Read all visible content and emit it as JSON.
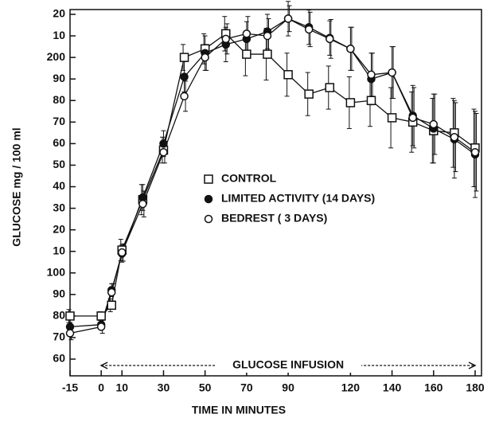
{
  "chart_data": {
    "type": "line",
    "y_label": "GLUCOSE mg / 100 ml",
    "x_label": "TIME IN MINUTES",
    "x": [
      -15,
      0,
      5,
      10,
      20,
      30,
      40,
      50,
      60,
      70,
      80,
      90,
      100,
      110,
      120,
      130,
      140,
      150,
      160,
      170,
      180
    ],
    "series": [
      {
        "name": "CONTROL",
        "color": "#111111",
        "marker": "square",
        "values": [
          80,
          80,
          85,
          110.6,
          134,
          157,
          200,
          204,
          211,
          201.5,
          201.5,
          192,
          183,
          186,
          179,
          180,
          172,
          170,
          166,
          165,
          158
        ],
        "errors": [
          3,
          2,
          3,
          5,
          7,
          6,
          6,
          7,
          8,
          10,
          12,
          10,
          10,
          10,
          12,
          12,
          14,
          14,
          15,
          16,
          18
        ]
      },
      {
        "name": "LIMITED ACTIVITY (14 DAYS)",
        "color": "#111111",
        "marker": "filled-circle",
        "values": [
          75,
          76,
          92,
          109,
          135,
          160,
          191,
          202,
          206,
          208.6,
          212,
          218,
          214,
          209,
          204,
          190,
          193,
          173,
          167,
          162,
          155
        ],
        "errors": [
          2,
          2,
          3,
          4,
          6,
          6,
          7,
          8,
          8,
          8,
          8,
          8,
          8,
          8,
          10,
          12,
          12,
          14,
          16,
          18,
          20
        ]
      },
      {
        "name": "BEDREST ( 3 DAYS)",
        "color": "#111111",
        "marker": "open-circle",
        "values": [
          72,
          75,
          91,
          109.5,
          132,
          156,
          182,
          200,
          208.6,
          211,
          210,
          218,
          213,
          208.6,
          204,
          192,
          193,
          172,
          169,
          163,
          156
        ],
        "errors": [
          3,
          3,
          4,
          4,
          6,
          5,
          7,
          6,
          7,
          8,
          8,
          6,
          8,
          9,
          10,
          10,
          12,
          14,
          14,
          16,
          18
        ]
      }
    ],
    "xlim": [
      -15,
      180
    ],
    "xticks": [
      -15,
      0,
      10,
      30,
      50,
      70,
      90,
      120,
      140,
      160,
      180
    ],
    "ylim": [
      60,
      220
    ],
    "yticks": [
      60,
      70,
      80,
      90,
      100,
      {
        "value": 110,
        "label": "10"
      },
      {
        "value": 120,
        "label": "20"
      },
      {
        "value": 130,
        "label": "30"
      },
      {
        "value": 140,
        "label": "40"
      },
      {
        "value": 150,
        "label": "50"
      },
      {
        "value": 160,
        "label": "60"
      },
      {
        "value": 170,
        "label": "70"
      },
      {
        "value": 180,
        "label": "80"
      },
      {
        "value": 190,
        "label": "90"
      },
      200,
      {
        "value": 210,
        "label": "10"
      },
      {
        "value": 220,
        "label": "20"
      }
    ],
    "annotation": {
      "text": "GLUCOSE INFUSION",
      "x": [
        0,
        180
      ]
    },
    "legend": "center-right"
  }
}
